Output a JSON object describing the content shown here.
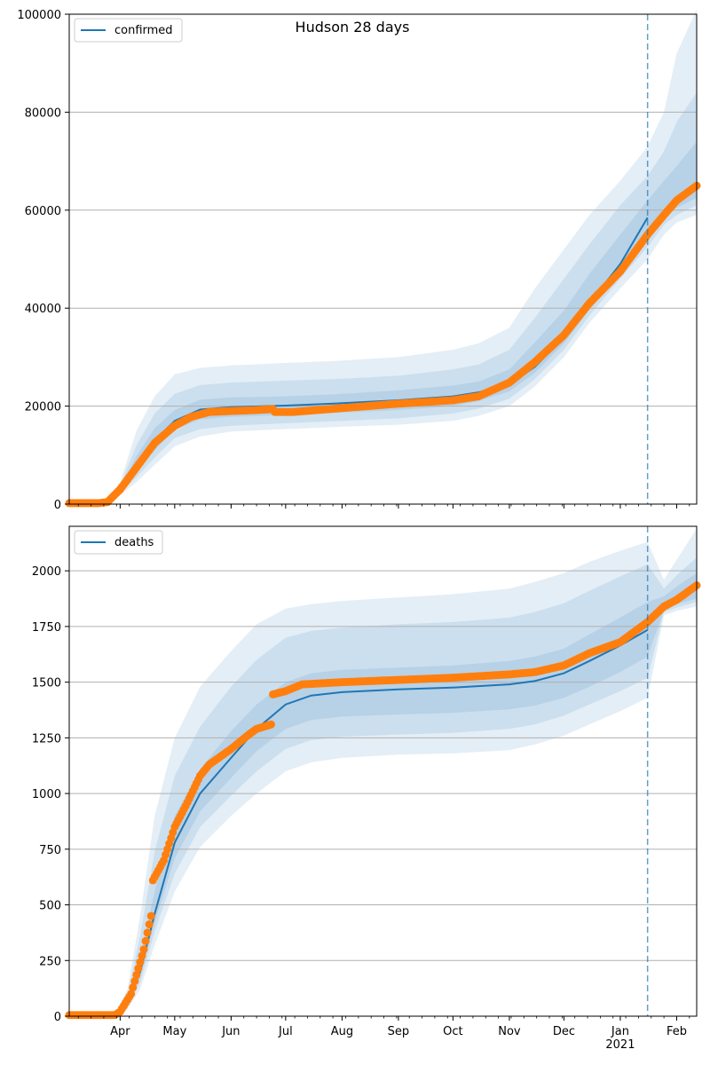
{
  "title": "Hudson 28 days",
  "colors": {
    "model": "#1f77b4",
    "observed": "#ff7f0e",
    "band": "#1f77b4",
    "grid": "#b0b0b0",
    "divider": "#1f77b4"
  },
  "x_axis": {
    "month_labels": [
      "Apr",
      "May",
      "Jun",
      "Jul",
      "Aug",
      "Sep",
      "Oct",
      "Nov",
      "Dec",
      "Jan",
      "Feb"
    ],
    "year_label": "2021",
    "range": [
      "2020-03-04",
      "2021-02-12"
    ],
    "forecast_start": "2021-01-16"
  },
  "chart_data": [
    {
      "type": "line",
      "legend_label": "confirmed",
      "legend_position": "top-left",
      "ylim": [
        0,
        100000
      ],
      "yticks": [
        0,
        20000,
        40000,
        60000,
        80000,
        100000
      ],
      "ytick_labels": [
        "0",
        "20000",
        "40000",
        "60000",
        "80000",
        "100000"
      ],
      "grid": "horizontal",
      "model_line": {
        "x": [
          "2020-03-22",
          "2020-04-01",
          "2020-04-10",
          "2020-04-20",
          "2020-05-01",
          "2020-05-15",
          "2020-06-01",
          "2020-07-01",
          "2020-08-01",
          "2020-09-01",
          "2020-10-01",
          "2020-10-15",
          "2020-11-01",
          "2020-11-15",
          "2020-12-01",
          "2020-12-15",
          "2021-01-01",
          "2021-01-16"
        ],
        "y": [
          0,
          3000,
          8000,
          13000,
          17000,
          19300,
          19800,
          20100,
          20600,
          21200,
          22000,
          22800,
          24500,
          28000,
          34000,
          41000,
          49000,
          58500
        ]
      },
      "bands": [
        {
          "x": [
            "2020-03-22",
            "2020-04-01",
            "2020-04-10",
            "2020-04-20",
            "2020-05-01",
            "2020-05-15",
            "2020-06-01",
            "2020-07-01",
            "2020-08-01",
            "2020-09-01",
            "2020-10-01",
            "2020-10-15",
            "2020-11-01",
            "2020-11-15",
            "2020-12-01",
            "2020-12-15",
            "2021-01-01",
            "2021-01-16",
            "2021-01-25",
            "2021-02-01",
            "2021-02-12"
          ],
          "lower": [
            0,
            1800,
            4500,
            8000,
            11800,
            13800,
            14800,
            15300,
            15800,
            16200,
            17000,
            18000,
            20000,
            24000,
            30000,
            37000,
            44000,
            50000,
            55000,
            57500,
            59000
          ],
          "upper": [
            0,
            4500,
            15000,
            22000,
            26500,
            27800,
            28300,
            28800,
            29300,
            30000,
            31500,
            32800,
            36000,
            44000,
            52000,
            59000,
            66000,
            73000,
            80000,
            92000,
            101000
          ]
        },
        {
          "x": [
            "2020-03-22",
            "2020-04-01",
            "2020-04-10",
            "2020-04-20",
            "2020-05-01",
            "2020-05-15",
            "2020-06-01",
            "2020-07-01",
            "2020-08-01",
            "2020-09-01",
            "2020-10-01",
            "2020-10-15",
            "2020-11-01",
            "2020-11-15",
            "2020-12-01",
            "2020-12-15",
            "2021-01-01",
            "2021-01-16",
            "2021-01-25",
            "2021-02-01",
            "2021-02-12"
          ],
          "lower": [
            0,
            2200,
            5500,
            9500,
            13500,
            15300,
            16000,
            16500,
            17000,
            17500,
            18500,
            19500,
            21500,
            25500,
            31500,
            38500,
            46000,
            52500,
            57000,
            59000,
            61000
          ],
          "upper": [
            0,
            3900,
            12000,
            18500,
            22500,
            24300,
            24800,
            25200,
            25600,
            26200,
            27500,
            28500,
            31500,
            38000,
            46000,
            53000,
            61000,
            67000,
            72000,
            78000,
            84000
          ]
        },
        {
          "x": [
            "2020-03-22",
            "2020-04-01",
            "2020-04-10",
            "2020-04-20",
            "2020-05-01",
            "2020-05-15",
            "2020-06-01",
            "2020-07-01",
            "2020-08-01",
            "2020-09-01",
            "2020-10-01",
            "2020-10-15",
            "2020-11-01",
            "2020-11-15",
            "2020-12-01",
            "2020-12-15",
            "2021-01-01",
            "2021-01-16",
            "2021-01-25",
            "2021-02-01",
            "2021-02-12"
          ],
          "lower": [
            0,
            2600,
            6800,
            11000,
            15200,
            17300,
            17800,
            18200,
            18700,
            19200,
            20000,
            21000,
            23000,
            26800,
            32800,
            39700,
            47500,
            55000,
            58500,
            60500,
            62500
          ],
          "upper": [
            0,
            3400,
            9800,
            15500,
            19200,
            21300,
            21800,
            22000,
            22500,
            23200,
            24200,
            25000,
            27500,
            33000,
            39500,
            47000,
            55000,
            62000,
            66000,
            69000,
            74000
          ]
        }
      ],
      "observed": {
        "anchors_x": [
          "2020-03-04",
          "2020-03-20",
          "2020-03-25",
          "2020-04-01",
          "2020-04-10",
          "2020-04-20",
          "2020-05-01",
          "2020-05-10",
          "2020-05-20",
          "2020-06-01",
          "2020-06-15",
          "2020-06-24",
          "2020-06-25",
          "2020-07-05",
          "2020-08-01",
          "2020-09-01",
          "2020-10-01",
          "2020-10-15",
          "2020-11-01",
          "2020-11-15",
          "2020-12-01",
          "2020-12-15",
          "2021-01-01",
          "2021-01-16",
          "2021-01-25",
          "2021-02-01",
          "2021-02-12"
        ],
        "anchors_y": [
          200,
          200,
          400,
          3000,
          7500,
          12500,
          16000,
          17800,
          18800,
          19000,
          19200,
          19400,
          18800,
          18800,
          19600,
          20500,
          21200,
          22000,
          24800,
          29000,
          34500,
          41000,
          47500,
          55000,
          59000,
          62000,
          65000
        ]
      }
    },
    {
      "type": "line",
      "legend_label": "deaths",
      "legend_position": "top-left",
      "ylim": [
        0,
        2200
      ],
      "yticks": [
        0,
        250,
        500,
        750,
        1000,
        1250,
        1500,
        1750,
        2000
      ],
      "ytick_labels": [
        "0",
        "250",
        "500",
        "750",
        "1000",
        "1250",
        "1500",
        "1750",
        "2000"
      ],
      "grid": "horizontal",
      "model_line": {
        "x": [
          "2020-03-28",
          "2020-04-05",
          "2020-04-12",
          "2020-04-20",
          "2020-05-01",
          "2020-05-15",
          "2020-06-01",
          "2020-06-15",
          "2020-07-01",
          "2020-07-15",
          "2020-08-01",
          "2020-09-01",
          "2020-10-01",
          "2020-11-01",
          "2020-11-15",
          "2020-12-01",
          "2020-12-15",
          "2021-01-01",
          "2021-01-16"
        ],
        "y": [
          0,
          60,
          200,
          460,
          780,
          1000,
          1160,
          1290,
          1400,
          1440,
          1455,
          1468,
          1476,
          1490,
          1505,
          1540,
          1595,
          1665,
          1735
        ]
      },
      "bands": [
        {
          "x": [
            "2020-03-28",
            "2020-04-05",
            "2020-04-12",
            "2020-04-20",
            "2020-05-01",
            "2020-05-15",
            "2020-06-01",
            "2020-06-15",
            "2020-07-01",
            "2020-07-15",
            "2020-08-01",
            "2020-09-01",
            "2020-10-01",
            "2020-11-01",
            "2020-11-15",
            "2020-12-01",
            "2020-12-15",
            "2021-01-01",
            "2021-01-16",
            "2021-01-25",
            "2021-02-01",
            "2021-02-12"
          ],
          "lower": [
            0,
            30,
            120,
            320,
            560,
            760,
            900,
            1000,
            1100,
            1140,
            1160,
            1175,
            1180,
            1195,
            1220,
            1260,
            1310,
            1370,
            1430,
            1800,
            1820,
            1840
          ],
          "upper": [
            0,
            120,
            450,
            900,
            1250,
            1480,
            1640,
            1760,
            1830,
            1850,
            1865,
            1880,
            1895,
            1920,
            1950,
            1990,
            2040,
            2090,
            2130,
            1960,
            2050,
            2190
          ]
        },
        {
          "x": [
            "2020-03-28",
            "2020-04-05",
            "2020-04-12",
            "2020-04-20",
            "2020-05-01",
            "2020-05-15",
            "2020-06-01",
            "2020-06-15",
            "2020-07-01",
            "2020-07-15",
            "2020-08-01",
            "2020-09-01",
            "2020-10-01",
            "2020-11-01",
            "2020-11-15",
            "2020-12-01",
            "2020-12-15",
            "2021-01-01",
            "2021-01-16",
            "2021-01-25",
            "2021-02-01",
            "2021-02-12"
          ],
          "lower": [
            0,
            40,
            150,
            380,
            640,
            850,
            990,
            1100,
            1200,
            1240,
            1255,
            1265,
            1272,
            1290,
            1310,
            1350,
            1400,
            1460,
            1520,
            1815,
            1835,
            1860
          ],
          "upper": [
            0,
            95,
            360,
            740,
            1080,
            1300,
            1480,
            1600,
            1700,
            1730,
            1745,
            1760,
            1770,
            1790,
            1815,
            1855,
            1910,
            1975,
            2030,
            1920,
            1980,
            2060
          ]
        },
        {
          "x": [
            "2020-03-28",
            "2020-04-05",
            "2020-04-12",
            "2020-04-20",
            "2020-05-01",
            "2020-05-15",
            "2020-06-01",
            "2020-06-15",
            "2020-07-01",
            "2020-07-15",
            "2020-08-01",
            "2020-09-01",
            "2020-10-01",
            "2020-11-01",
            "2020-11-15",
            "2020-12-01",
            "2020-12-15",
            "2021-01-01",
            "2021-01-16",
            "2021-01-25",
            "2021-02-01",
            "2021-02-12"
          ],
          "lower": [
            0,
            50,
            175,
            420,
            710,
            920,
            1070,
            1190,
            1290,
            1330,
            1345,
            1355,
            1362,
            1378,
            1395,
            1430,
            1480,
            1545,
            1615,
            1825,
            1850,
            1875
          ],
          "upper": [
            0,
            75,
            270,
            560,
            900,
            1110,
            1280,
            1400,
            1500,
            1540,
            1555,
            1565,
            1575,
            1595,
            1615,
            1650,
            1715,
            1790,
            1860,
            1885,
            1930,
            1990
          ]
        }
      ],
      "observed": {
        "anchors_x": [
          "2020-03-04",
          "2020-03-29",
          "2020-04-01",
          "2020-04-07",
          "2020-04-14",
          "2020-04-18",
          "2020-04-19",
          "2020-04-25",
          "2020-05-01",
          "2020-05-08",
          "2020-05-15",
          "2020-05-20",
          "2020-06-01",
          "2020-06-10",
          "2020-06-15",
          "2020-06-23",
          "2020-06-24",
          "2020-07-01",
          "2020-07-10",
          "2020-08-01",
          "2020-09-01",
          "2020-10-01",
          "2020-11-01",
          "2020-11-15",
          "2020-12-01",
          "2020-12-15",
          "2021-01-01",
          "2021-01-16",
          "2021-01-25",
          "2021-02-01",
          "2021-02-12"
        ],
        "anchors_y": [
          5,
          5,
          20,
          100,
          300,
          450,
          610,
          700,
          850,
          960,
          1080,
          1130,
          1200,
          1260,
          1290,
          1310,
          1445,
          1460,
          1490,
          1500,
          1510,
          1520,
          1535,
          1545,
          1575,
          1630,
          1680,
          1770,
          1840,
          1870,
          1935
        ]
      }
    }
  ]
}
